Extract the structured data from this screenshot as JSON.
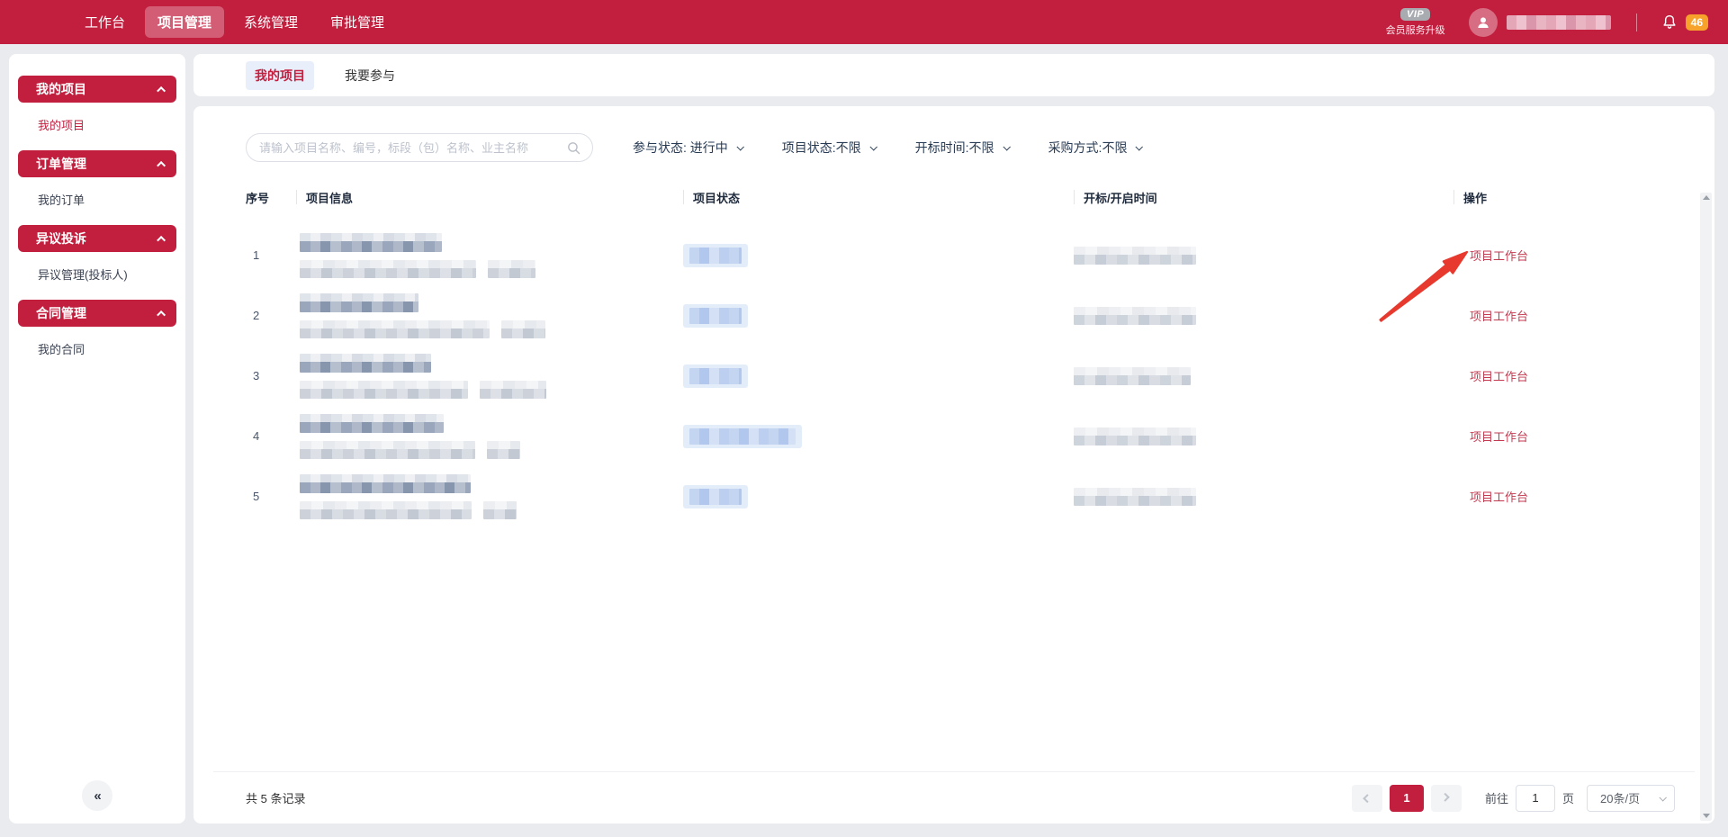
{
  "topnav": {
    "items": [
      {
        "label": "工作台",
        "active": false
      },
      {
        "label": "项目管理",
        "active": true
      },
      {
        "label": "系统管理",
        "active": false
      },
      {
        "label": "审批管理",
        "active": false
      }
    ]
  },
  "topbar_right": {
    "vip_label": "VIP",
    "vip_caption": "会员服务升级",
    "notification_count": "46"
  },
  "sidebar": {
    "groups": [
      {
        "title": "我的项目",
        "items": [
          {
            "label": "我的项目",
            "active": true
          }
        ]
      },
      {
        "title": "订单管理",
        "items": [
          {
            "label": "我的订单",
            "active": false
          }
        ]
      },
      {
        "title": "异议投诉",
        "items": [
          {
            "label": "异议管理(投标人)",
            "active": false
          }
        ]
      },
      {
        "title": "合同管理",
        "items": [
          {
            "label": "我的合同",
            "active": false
          }
        ]
      }
    ],
    "collapse_glyph": "«"
  },
  "tabs": {
    "items": [
      {
        "label": "我的项目",
        "active": true
      },
      {
        "label": "我要参与",
        "active": false
      }
    ]
  },
  "search": {
    "placeholder": "请输入项目名称、编号，标段（包）名称、业主名称"
  },
  "filters": [
    {
      "label": "参与状态: 进行中"
    },
    {
      "label": "项目状态:不限"
    },
    {
      "label": "开标时间:不限"
    },
    {
      "label": "采购方式:不限"
    }
  ],
  "table": {
    "headers": [
      "序号",
      "项目信息",
      "项目状态",
      "开标/开启时间",
      "操作"
    ],
    "rows": [
      {
        "no": "1",
        "name_w": 158,
        "detail_w": 196,
        "detail2_w": 53,
        "status_w": 72,
        "time_w": 136,
        "action_label": "项目工作台"
      },
      {
        "no": "2",
        "name_w": 132,
        "detail_w": 211,
        "detail2_w": 49,
        "status_w": 72,
        "time_w": 136,
        "action_label": "项目工作台"
      },
      {
        "no": "3",
        "name_w": 146,
        "detail_w": 187,
        "detail2_w": 74,
        "status_w": 72,
        "time_w": 130,
        "action_label": "项目工作台"
      },
      {
        "no": "4",
        "name_w": 160,
        "detail_w": 195,
        "detail2_w": 37,
        "status_w": 132,
        "time_w": 136,
        "action_label": "项目工作台"
      },
      {
        "no": "5",
        "name_w": 190,
        "detail_w": 191,
        "detail2_w": 37,
        "status_w": 72,
        "time_w": 136,
        "action_label": "项目工作台"
      }
    ]
  },
  "footer": {
    "total_text": "共 5 条记录",
    "active_page": "1",
    "goto_label": "前往",
    "goto_value": "1",
    "page_unit": "页",
    "page_size": "20条/页"
  },
  "colors": {
    "brand_red": "#c21f3f",
    "link_red": "#c23a50",
    "badge_orange": "#f7a32b",
    "status_pill_blue": "#e3ecf9"
  }
}
